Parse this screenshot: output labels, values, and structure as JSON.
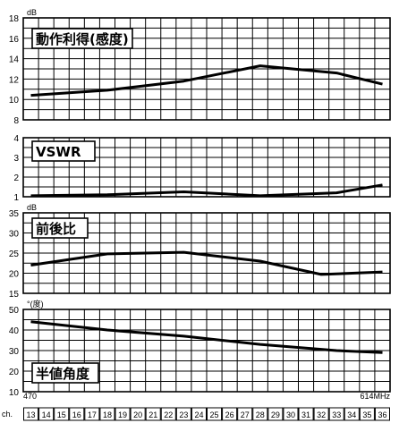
{
  "chart_data": [
    {
      "type": "line",
      "title": "動作利得(感度)",
      "ylabel": "dB",
      "ylim": [
        8,
        18
      ],
      "yticks": [
        "18",
        "16",
        "14",
        "12",
        "10",
        "8"
      ],
      "x": [
        13,
        18,
        23,
        28,
        33,
        36
      ],
      "values": [
        10.4,
        10.9,
        11.8,
        13.3,
        12.6,
        11.5
      ]
    },
    {
      "type": "line",
      "title": "VSWR",
      "ylabel": "",
      "ylim": [
        1,
        4
      ],
      "yticks": [
        "4",
        "3",
        "2",
        "1"
      ],
      "x": [
        13,
        18,
        23,
        28,
        33,
        36
      ],
      "values": [
        1.05,
        1.1,
        1.25,
        1.05,
        1.2,
        1.6
      ]
    },
    {
      "type": "line",
      "title": "前後比",
      "ylabel": "dB",
      "ylim": [
        15,
        35
      ],
      "yticks": [
        "35",
        "30",
        "25",
        "20",
        "15"
      ],
      "x": [
        13,
        18,
        23,
        28,
        32,
        36
      ],
      "values": [
        22,
        24.8,
        25.2,
        23,
        19.7,
        20.3
      ]
    },
    {
      "type": "line",
      "title": "半値角度",
      "ylabel": "°(度)",
      "ylim": [
        10,
        50
      ],
      "yticks": [
        "50",
        "40",
        "30",
        "20",
        "10"
      ],
      "x": [
        13,
        18,
        23,
        28,
        33,
        36
      ],
      "values": [
        44,
        40,
        37,
        33,
        30,
        29
      ]
    }
  ],
  "x_axis": {
    "freq_start": "470",
    "freq_end": "614MHz",
    "channel_prefix": "ch.",
    "channels": [
      "13",
      "14",
      "15",
      "16",
      "17",
      "18",
      "19",
      "20",
      "21",
      "22",
      "23",
      "24",
      "25",
      "26",
      "27",
      "28",
      "29",
      "30",
      "31",
      "32",
      "33",
      "34",
      "35",
      "36"
    ]
  }
}
